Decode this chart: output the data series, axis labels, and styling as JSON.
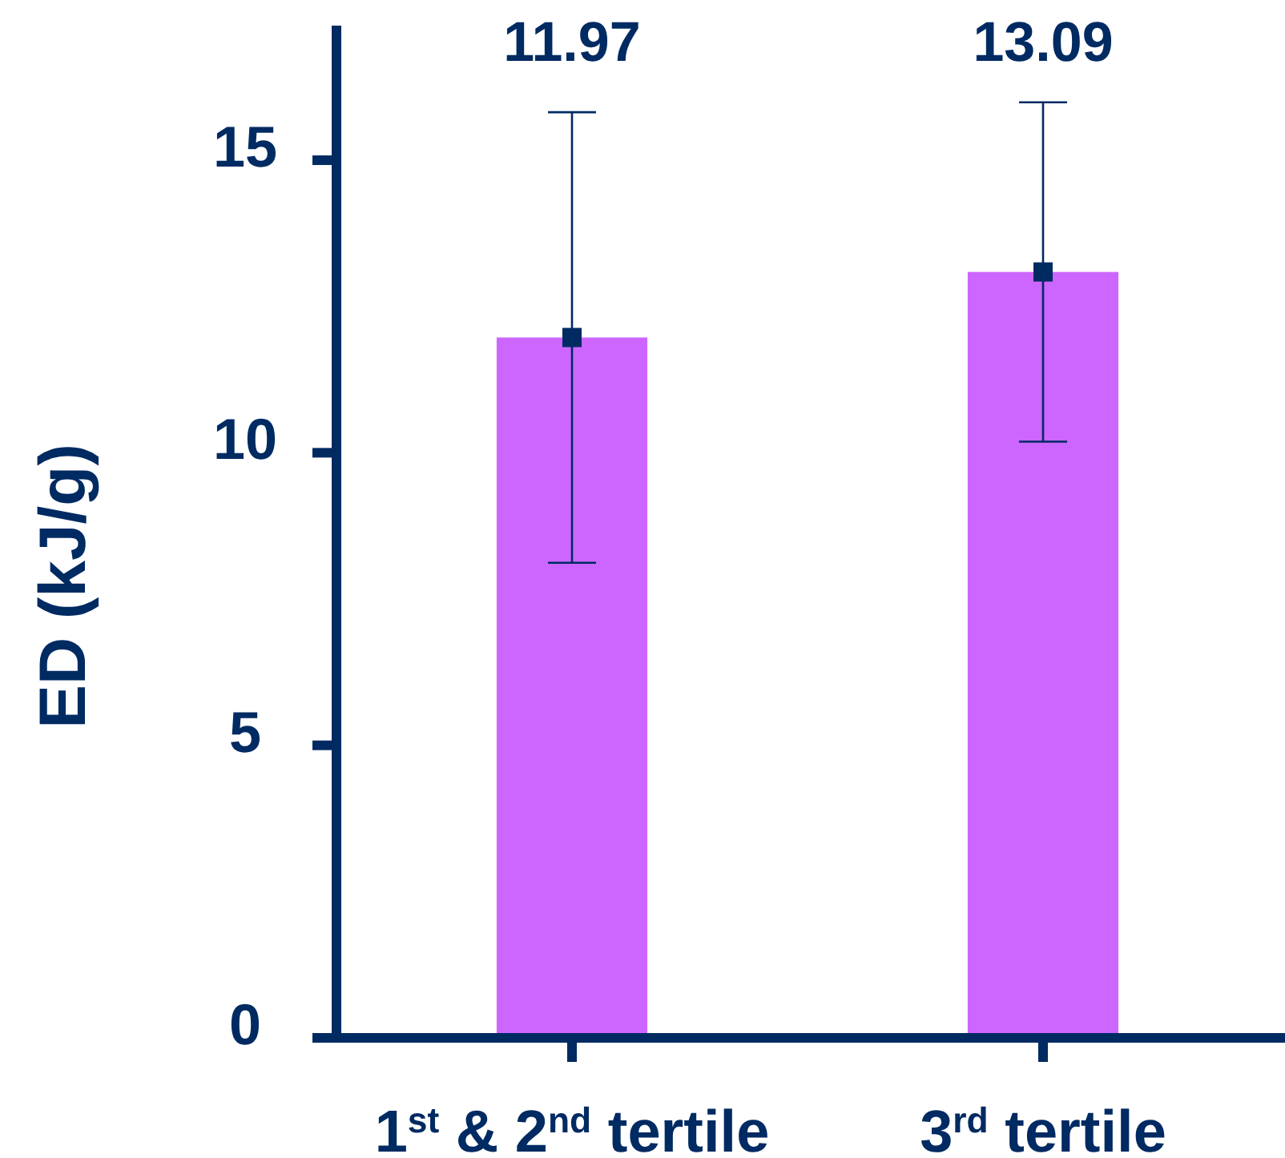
{
  "chart_data": {
    "type": "bar",
    "categories": [
      "1$^{st}$ & 2$^{nd}$ tertile",
      "3$^{rd}$ tertile"
    ],
    "series": [
      {
        "color": "#cc66ff",
        "values": [
          11.97,
          13.09
        ]
      },
      {
        "type": "scatter",
        "x": [
          "1$^{st}$ & 2$^{nd}$ tertile",
          "3$^{rd}$ tertile"
        ],
        "color": "#002a62",
        "marker": "square",
        "values": [
          11.97,
          13.09
        ],
        "errors": [
          3.85,
          2.9
        ]
      }
    ],
    "ylabel": "ED (kJ/g)",
    "ylim": [
      0,
      17.3
    ],
    "yticks": [
      0,
      5,
      10,
      15
    ],
    "annotations": [
      "11.97",
      "13.09"
    ]
  }
}
